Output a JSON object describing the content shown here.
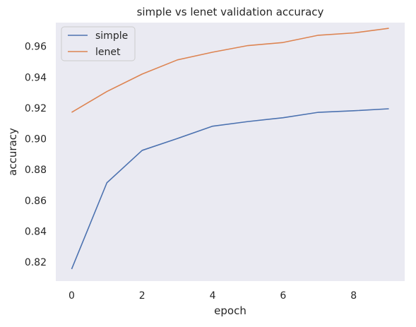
{
  "chart_data": {
    "type": "line",
    "title": "simple vs lenet validation accuracy",
    "xlabel": "epoch",
    "ylabel": "accuracy",
    "x": [
      0,
      1,
      2,
      3,
      4,
      5,
      6,
      7,
      8,
      9
    ],
    "series": [
      {
        "name": "simple",
        "color": "#4c72b0",
        "values": [
          0.8155,
          0.8715,
          0.8925,
          0.9002,
          0.9082,
          0.9112,
          0.9137,
          0.9172,
          0.9182,
          0.9195
        ]
      },
      {
        "name": "lenet",
        "color": "#dd8452",
        "values": [
          0.9172,
          0.9307,
          0.942,
          0.9512,
          0.9562,
          0.9605,
          0.9625,
          0.9672,
          0.9687,
          0.9717
        ]
      }
    ],
    "xlim": [
      -0.45,
      9.45
    ],
    "ylim": [
      0.8077,
      0.9754
    ],
    "xticks": [
      0,
      2,
      4,
      6,
      8
    ],
    "yticks": [
      0.82,
      0.84,
      0.86,
      0.88,
      0.9,
      0.92,
      0.94,
      0.96
    ],
    "ytick_labels": [
      "0.82",
      "0.84",
      "0.86",
      "0.88",
      "0.90",
      "0.92",
      "0.94",
      "0.96"
    ],
    "grid": false,
    "legend_position": "top-left",
    "background_color": "#eaeaf2"
  }
}
